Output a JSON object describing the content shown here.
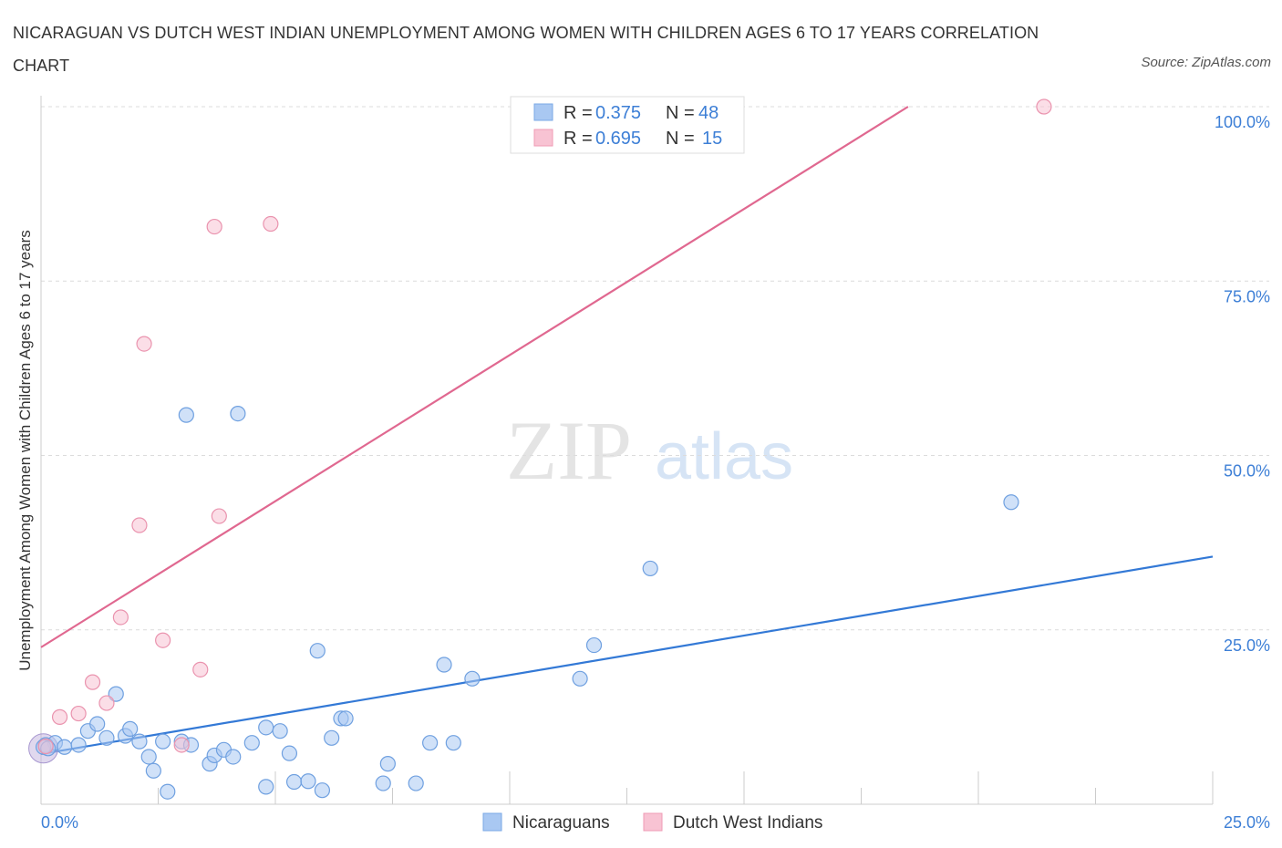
{
  "title": "NICARAGUAN VS DUTCH WEST INDIAN UNEMPLOYMENT AMONG WOMEN WITH CHILDREN AGES 6 TO 17 YEARS CORRELATION CHART",
  "source": "Source: ZipAtlas.com",
  "watermark": {
    "zip": "ZIP",
    "atlas": "atlas"
  },
  "legend": {
    "r_label": "R =",
    "n_label": "N =",
    "rows": [
      {
        "r": "0.375",
        "n": "48",
        "color": "#a9c8f2",
        "stroke": "#7aa8e6"
      },
      {
        "r": "0.695",
        "n": "15",
        "color": "#f8c3d3",
        "stroke": "#ef9bb5"
      }
    ]
  },
  "chart_data": {
    "type": "scatter",
    "xlabel": "",
    "ylabel": "Unemployment Among Women with Children Ages 6 to 17 years",
    "xlim": [
      0,
      25
    ],
    "ylim": [
      0,
      100
    ],
    "x_tick_labels": [
      "0.0%",
      "25.0%"
    ],
    "y_tick_labels": [
      "100.0%",
      "75.0%",
      "50.0%",
      "25.0%"
    ],
    "y_ticks": [
      100,
      75,
      50,
      25
    ],
    "grid": true,
    "series": [
      {
        "name": "Nicaraguans",
        "color": "#a9c8f2",
        "stroke": "#6fa0e0",
        "line_color": "#3379d6",
        "trend": [
          [
            0,
            7.2
          ],
          [
            25,
            35.5
          ]
        ],
        "points": [
          [
            0.1,
            8.5
          ],
          [
            0.3,
            8.8
          ],
          [
            0.5,
            8.2
          ],
          [
            0.8,
            8.5
          ],
          [
            1.0,
            10.5
          ],
          [
            1.2,
            11.5
          ],
          [
            1.4,
            9.5
          ],
          [
            1.6,
            15.8
          ],
          [
            1.8,
            9.8
          ],
          [
            1.9,
            10.8
          ],
          [
            2.1,
            9.0
          ],
          [
            2.3,
            6.8
          ],
          [
            2.4,
            4.8
          ],
          [
            2.6,
            9.0
          ],
          [
            2.7,
            1.8
          ],
          [
            3.0,
            9.0
          ],
          [
            3.1,
            55.8
          ],
          [
            3.2,
            8.5
          ],
          [
            3.6,
            5.8
          ],
          [
            3.7,
            7.0
          ],
          [
            3.9,
            7.8
          ],
          [
            4.1,
            6.8
          ],
          [
            4.2,
            56.0
          ],
          [
            4.5,
            8.8
          ],
          [
            4.8,
            11.0
          ],
          [
            4.8,
            2.5
          ],
          [
            5.1,
            10.5
          ],
          [
            5.3,
            7.3
          ],
          [
            5.4,
            3.2
          ],
          [
            5.7,
            3.3
          ],
          [
            5.9,
            22.0
          ],
          [
            6.0,
            2.0
          ],
          [
            6.2,
            9.5
          ],
          [
            6.4,
            12.3
          ],
          [
            6.5,
            12.3
          ],
          [
            7.3,
            3.0
          ],
          [
            7.4,
            5.8
          ],
          [
            8.0,
            3.0
          ],
          [
            8.3,
            8.8
          ],
          [
            8.6,
            20.0
          ],
          [
            8.8,
            8.8
          ],
          [
            9.2,
            18.0
          ],
          [
            11.5,
            18.0
          ],
          [
            11.8,
            22.8
          ],
          [
            13.0,
            33.8
          ],
          [
            20.7,
            43.3
          ],
          [
            0.05,
            8.2
          ],
          [
            0.15,
            8.0
          ]
        ]
      },
      {
        "name": "Dutch West Indians",
        "color": "#f8c3d3",
        "stroke": "#ea93ae",
        "line_color": "#e06890",
        "trend": [
          [
            0,
            22.5
          ],
          [
            18.5,
            100
          ]
        ],
        "points": [
          [
            0.1,
            8.3
          ],
          [
            0.4,
            12.5
          ],
          [
            0.8,
            13.0
          ],
          [
            1.1,
            17.5
          ],
          [
            1.4,
            14.5
          ],
          [
            1.7,
            26.8
          ],
          [
            2.1,
            40.0
          ],
          [
            2.2,
            66.0
          ],
          [
            2.6,
            23.5
          ],
          [
            3.0,
            8.5
          ],
          [
            3.4,
            19.3
          ],
          [
            3.7,
            82.8
          ],
          [
            3.8,
            41.3
          ],
          [
            4.9,
            83.2
          ],
          [
            21.4,
            100.0
          ]
        ]
      }
    ]
  }
}
